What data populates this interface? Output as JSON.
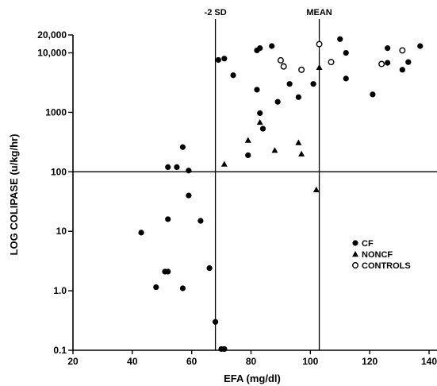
{
  "chart_data": {
    "type": "scatter",
    "title": "",
    "xlabel": "EFA (mg/dl)",
    "ylabel": "LOG COLIPASE (u/kg/hr)",
    "x_range": [
      20,
      140
    ],
    "y_range": [
      0.1,
      20000
    ],
    "y_scale": "log",
    "x_ticks": [
      "20",
      "40",
      "60",
      "80",
      "100",
      "120",
      "140"
    ],
    "y_ticks": [
      {
        "value": 0.1,
        "label": "0.1"
      },
      {
        "value": 1,
        "label": "1.0"
      },
      {
        "value": 10,
        "label": "10"
      },
      {
        "value": 100,
        "label": "100"
      },
      {
        "value": 1000,
        "label": "1000"
      },
      {
        "value": 10000,
        "label": "10,000"
      },
      {
        "value": 20000,
        "label": "20,000"
      }
    ],
    "reference_lines": [
      {
        "axis": "x",
        "value": 68,
        "label": "-2 SD"
      },
      {
        "axis": "x",
        "value": 103,
        "label": "MEAN"
      },
      {
        "axis": "y",
        "value": 100,
        "label": ""
      }
    ],
    "legend_position": "right",
    "series": [
      {
        "name": "CF",
        "marker": "filled-circle",
        "points": [
          [
            43,
            9.5
          ],
          [
            48,
            1.15
          ],
          [
            51,
            2.1
          ],
          [
            52,
            16
          ],
          [
            52,
            120
          ],
          [
            52,
            2.1
          ],
          [
            55,
            120
          ],
          [
            57,
            260
          ],
          [
            57,
            1.1
          ],
          [
            59,
            40
          ],
          [
            59,
            105
          ],
          [
            63,
            15
          ],
          [
            66,
            2.4
          ],
          [
            68,
            0.3
          ],
          [
            69,
            7600
          ],
          [
            70,
            0.105
          ],
          [
            71,
            8000
          ],
          [
            71,
            0.105
          ],
          [
            74,
            4200
          ],
          [
            79,
            190
          ],
          [
            82,
            2400
          ],
          [
            82,
            11000
          ],
          [
            83,
            12000
          ],
          [
            83,
            970
          ],
          [
            84,
            530
          ],
          [
            87,
            13000
          ],
          [
            89,
            1500
          ],
          [
            91,
            6000
          ],
          [
            93,
            3000
          ],
          [
            96,
            1800
          ],
          [
            101,
            3000
          ],
          [
            110,
            17000
          ],
          [
            112,
            10000
          ],
          [
            112,
            3700
          ],
          [
            121,
            2000
          ],
          [
            126,
            6800
          ],
          [
            126,
            12000
          ],
          [
            131,
            5200
          ],
          [
            133,
            7000
          ],
          [
            137,
            13000
          ]
        ]
      },
      {
        "name": "NONCF",
        "marker": "filled-triangle",
        "points": [
          [
            71,
            135
          ],
          [
            79,
            340
          ],
          [
            83,
            680
          ],
          [
            88,
            230
          ],
          [
            96,
            310
          ],
          [
            97,
            200
          ],
          [
            102,
            50
          ],
          [
            103,
            5700
          ]
        ]
      },
      {
        "name": "CONTROLS",
        "marker": "open-circle",
        "points": [
          [
            90,
            7500
          ],
          [
            91,
            5900
          ],
          [
            97,
            5200
          ],
          [
            103,
            14000
          ],
          [
            107,
            7000
          ],
          [
            124,
            6500
          ],
          [
            131,
            11000
          ]
        ]
      }
    ]
  }
}
